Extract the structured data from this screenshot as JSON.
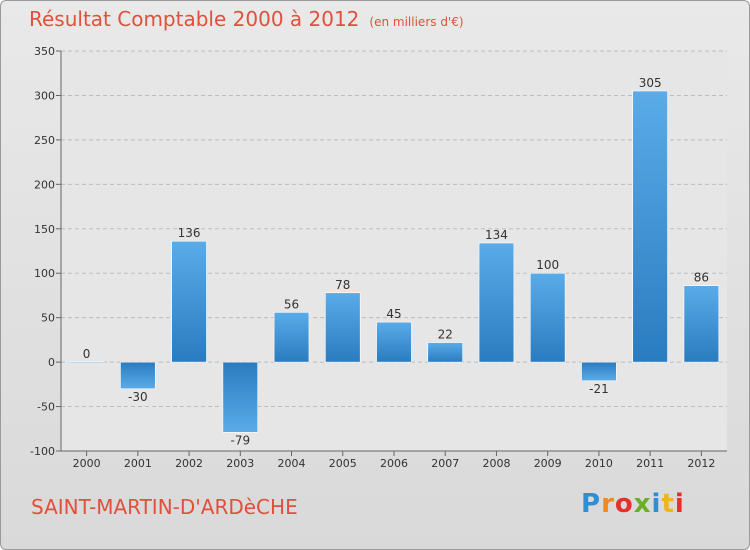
{
  "title": "Résultat Comptable 2000 à 2012",
  "subtitle": "(en milliers d'€)",
  "commune": "SAINT-MARTIN-D'ARDèCHE",
  "logo": {
    "letters": [
      "P",
      "r",
      "o",
      "x",
      "i",
      "t",
      "i"
    ],
    "colors": [
      "#2e8fd6",
      "#f08a1c",
      "#e8302a",
      "#6ab023",
      "#2e8fd6",
      "#f0b41c",
      "#e8302a"
    ]
  },
  "chart_data": {
    "type": "bar",
    "title": "Résultat Comptable 2000 à 2012",
    "ylabel": "en milliers d'€",
    "categories": [
      "2000",
      "2001",
      "2002",
      "2003",
      "2004",
      "2005",
      "2006",
      "2007",
      "2008",
      "2009",
      "2010",
      "2011",
      "2012"
    ],
    "values": [
      0,
      -30,
      136,
      -79,
      56,
      78,
      45,
      22,
      134,
      100,
      -21,
      305,
      86
    ],
    "labels": [
      "0",
      "-30",
      "136",
      "-79",
      "56",
      "78",
      "45",
      "22",
      "134",
      "100",
      "-21",
      "305",
      "86"
    ],
    "ylim": [
      -100,
      350
    ],
    "yticks": [
      -100,
      -50,
      0,
      50,
      100,
      150,
      200,
      250,
      300,
      350
    ],
    "ytick_labels": [
      "-100",
      "-50",
      "0",
      "50",
      "100",
      "150",
      "200",
      "250",
      "300",
      "350"
    ],
    "grid": true,
    "bar_color": "#3a8fd4"
  }
}
